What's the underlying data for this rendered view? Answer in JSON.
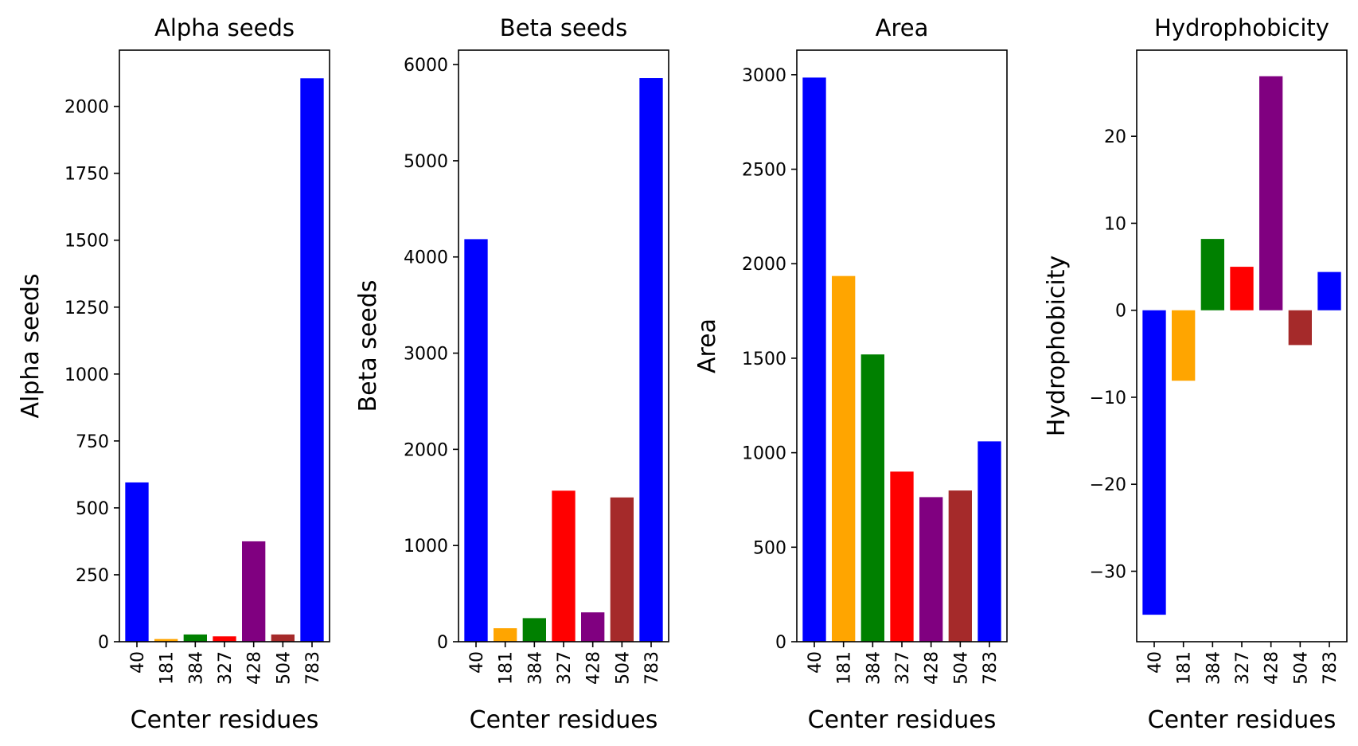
{
  "chart_data": [
    {
      "type": "bar",
      "title": "Alpha seeds",
      "xlabel": "Center residues",
      "ylabel": "Alpha seeds",
      "categories": [
        "40",
        "181",
        "384",
        "327",
        "428",
        "504",
        "783"
      ],
      "values": [
        595,
        10,
        27,
        20,
        375,
        27,
        2105
      ],
      "colors": [
        "#0000ff",
        "#ffa500",
        "#008000",
        "#ff0000",
        "#800080",
        "#a52a2a",
        "#0000ff"
      ],
      "ylim": [
        0,
        2210
      ],
      "yticks": [
        0,
        250,
        500,
        750,
        1000,
        1250,
        1500,
        1750,
        2000
      ],
      "grid": false
    },
    {
      "type": "bar",
      "title": "Beta seeds",
      "xlabel": "Center residues",
      "ylabel": "Beta seeds",
      "categories": [
        "40",
        "181",
        "384",
        "327",
        "428",
        "504",
        "783"
      ],
      "values": [
        4185,
        140,
        245,
        1570,
        305,
        1500,
        5860
      ],
      "colors": [
        "#0000ff",
        "#ffa500",
        "#008000",
        "#ff0000",
        "#800080",
        "#a52a2a",
        "#0000ff"
      ],
      "ylim": [
        0,
        6150
      ],
      "yticks": [
        0,
        1000,
        2000,
        3000,
        4000,
        5000,
        6000
      ],
      "grid": false
    },
    {
      "type": "bar",
      "title": "Area",
      "xlabel": "Center residues",
      "ylabel": "Area",
      "categories": [
        "40",
        "181",
        "384",
        "327",
        "428",
        "504",
        "783"
      ],
      "values": [
        2985,
        1935,
        1520,
        900,
        765,
        800,
        1060
      ],
      "colors": [
        "#0000ff",
        "#ffa500",
        "#008000",
        "#ff0000",
        "#800080",
        "#a52a2a",
        "#0000ff"
      ],
      "ylim": [
        0,
        3130
      ],
      "yticks": [
        0,
        500,
        1000,
        1500,
        2000,
        2500,
        3000
      ],
      "grid": false
    },
    {
      "type": "bar",
      "title": "Hydrophobicity",
      "xlabel": "Center residues",
      "ylabel": "Hydrophobicity",
      "categories": [
        "40",
        "181",
        "384",
        "327",
        "428",
        "504",
        "783"
      ],
      "values": [
        -35,
        -8.1,
        8.2,
        5,
        26.9,
        -4,
        4.4
      ],
      "colors": [
        "#0000ff",
        "#ffa500",
        "#008000",
        "#ff0000",
        "#800080",
        "#a52a2a",
        "#0000ff"
      ],
      "ylim": [
        -38.1,
        29.9
      ],
      "yticks": [
        -30,
        -20,
        -10,
        0,
        10,
        20
      ],
      "ytick_labels": [
        "−30",
        "−20",
        "−10",
        "0",
        "10",
        "20"
      ],
      "grid": false
    }
  ]
}
